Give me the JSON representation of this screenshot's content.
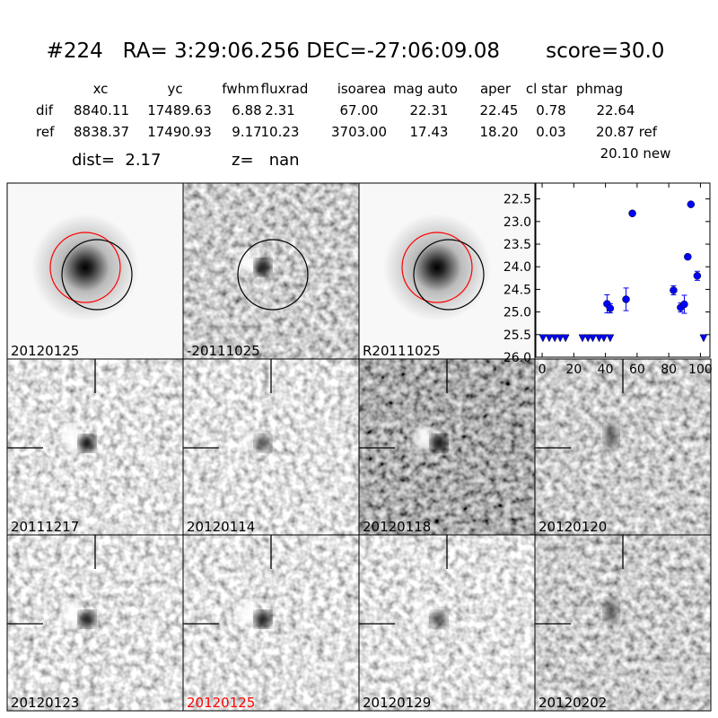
{
  "header": {
    "title": "#224   RA= 3:29:06.256 DEC=-27:06:09.08       score=30.0"
  },
  "table": {
    "columns": [
      "xc",
      "yc",
      "fwhm",
      "fluxrad",
      "isoarea",
      "mag auto",
      "aper",
      "cl star",
      "phmag"
    ],
    "rows": [
      [
        "dif",
        "8840.11",
        "17489.63",
        "6.88",
        "2.31",
        "67.00",
        "22.31",
        "22.45",
        "0.78",
        "22.64"
      ],
      [
        "ref",
        "8838.37",
        "17490.93",
        "9.17",
        "10.23",
        "3703.00",
        "17.43",
        "18.20",
        "0.03",
        "20.87 ref"
      ]
    ],
    "note": "20.10 new"
  },
  "info": {
    "dist": "dist=  2.17",
    "z": "z=   nan"
  },
  "panels": [
    {
      "label": "20120125",
      "color": "#000000"
    },
    {
      "label": "-20111025",
      "color": "#000000"
    },
    {
      "label": "R20111025",
      "color": "#000000"
    },
    {
      "label": "20111217",
      "color": "#000000"
    },
    {
      "label": "20120114",
      "color": "#000000"
    },
    {
      "label": "20120118",
      "color": "#000000"
    },
    {
      "label": "20120120",
      "color": "#000000"
    },
    {
      "label": "20120123",
      "color": "#000000"
    },
    {
      "label": "20120125",
      "color": "#ff0000"
    },
    {
      "label": "20120129",
      "color": "#000000"
    },
    {
      "label": "20120202",
      "color": "#000000"
    }
  ],
  "chart_data": {
    "type": "scatter",
    "xlim": [
      -4,
      106
    ],
    "xticks": [
      0,
      20,
      40,
      60,
      80,
      100
    ],
    "ylim": [
      22.15,
      26.0
    ],
    "y_inverted": true,
    "yticks": [
      22.5,
      {
        "value": 23,
        "label": "23.0"
      },
      23.5,
      {
        "value": 24,
        "label": "24.0"
      },
      24.5,
      {
        "value": 25,
        "label": "25.0"
      },
      25.5,
      {
        "value": 26,
        "label": "26.0"
      }
    ],
    "series": [
      {
        "color": "#0000ff",
        "marker": "circle",
        "x": [
          41,
          43,
          53,
          57,
          83,
          87.5,
          89.8,
          92,
          94,
          98
        ],
        "values": [
          24.82,
          24.92,
          24.72,
          22.82,
          24.52,
          24.9,
          24.83,
          23.78,
          22.62,
          24.2
        ],
        "errors": [
          0.2,
          0.1,
          0.25,
          0.03,
          0.1,
          0.1,
          0.2,
          0.05,
          0.03,
          0.1
        ]
      },
      {
        "color": "#0000ff",
        "marker": "triangle-down",
        "x": [
          0.5,
          4.5,
          8,
          11.4,
          14.8,
          25.5,
          29,
          32,
          36,
          39,
          43,
          102
        ],
        "values": [
          25.58,
          25.58,
          25.58,
          25.58,
          25.58,
          25.58,
          25.58,
          25.58,
          25.58,
          25.58,
          25.58,
          25.58
        ]
      }
    ]
  }
}
